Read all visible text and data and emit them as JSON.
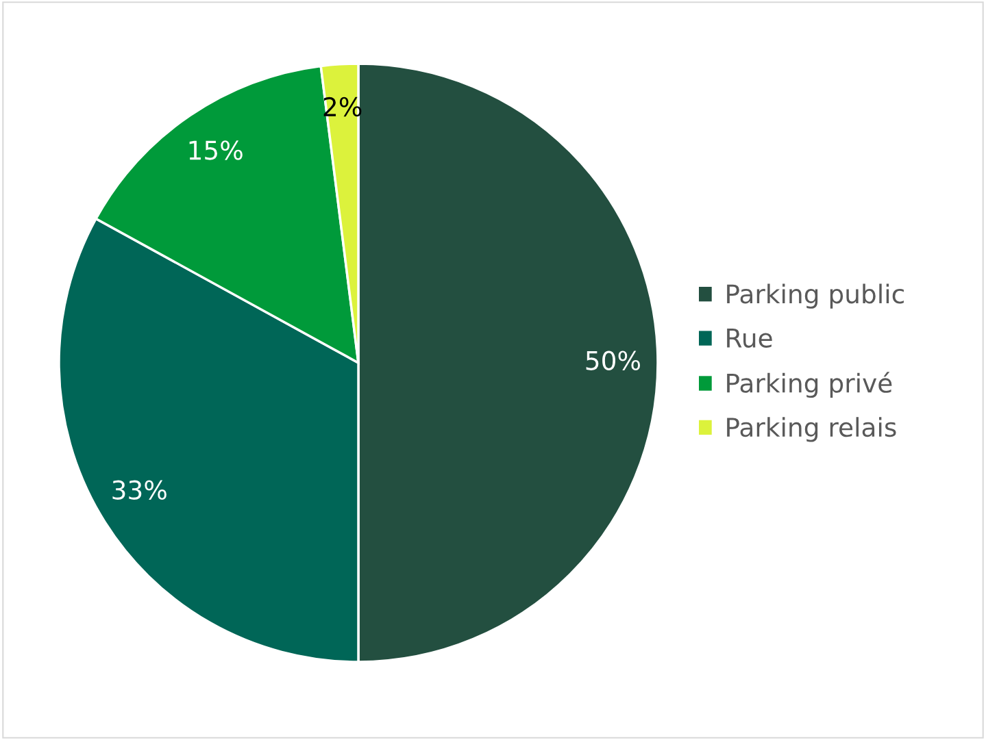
{
  "chart_data": {
    "type": "pie",
    "categories": [
      "Parking public",
      "Rue",
      "Parking privé",
      "Parking relais"
    ],
    "values": [
      50,
      33,
      15,
      2
    ],
    "colors": [
      "#234f40",
      "#006657",
      "#009a3a",
      "#dcf23c"
    ],
    "value_labels": [
      "50%",
      "33%",
      "15%",
      "2%"
    ],
    "legend": "right"
  }
}
